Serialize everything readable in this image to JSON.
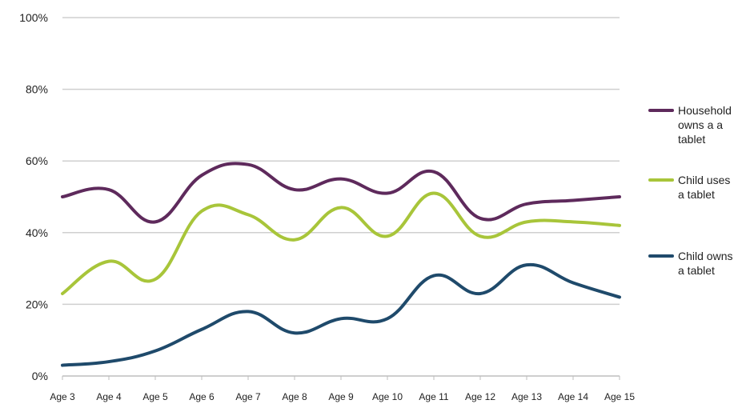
{
  "chart_data": {
    "type": "line",
    "categories": [
      "Age 3",
      "Age 4",
      "Age 5",
      "Age 6",
      "Age 7",
      "Age 8",
      "Age 9",
      "Age 10",
      "Age 11",
      "Age 12",
      "Age 13",
      "Age 14",
      "Age 15"
    ],
    "ylim": [
      0,
      100
    ],
    "yticks": [
      "0%",
      "20%",
      "40%",
      "60%",
      "80%",
      "100%"
    ],
    "grid": true,
    "legend_position": "right",
    "series": [
      {
        "name": "Household owns a a tablet",
        "legend_lines": [
          "Household",
          "owns a a",
          "tablet"
        ],
        "color": "#5e2a5c",
        "values": [
          50,
          52,
          43,
          56,
          59,
          52,
          55,
          51,
          57,
          44,
          48,
          49,
          50
        ]
      },
      {
        "name": "Child uses a tablet",
        "legend_lines": [
          "Child uses",
          "a tablet"
        ],
        "color": "#a8c53a",
        "values": [
          23,
          32,
          27,
          46,
          45,
          38,
          47,
          39,
          51,
          39,
          43,
          43,
          42
        ]
      },
      {
        "name": "Child owns a tablet",
        "legend_lines": [
          "Child owns",
          "a tablet"
        ],
        "color": "#1f4a6b",
        "values": [
          3,
          4,
          7,
          13,
          18,
          12,
          16,
          16,
          28,
          23,
          31,
          26,
          22
        ]
      }
    ]
  }
}
